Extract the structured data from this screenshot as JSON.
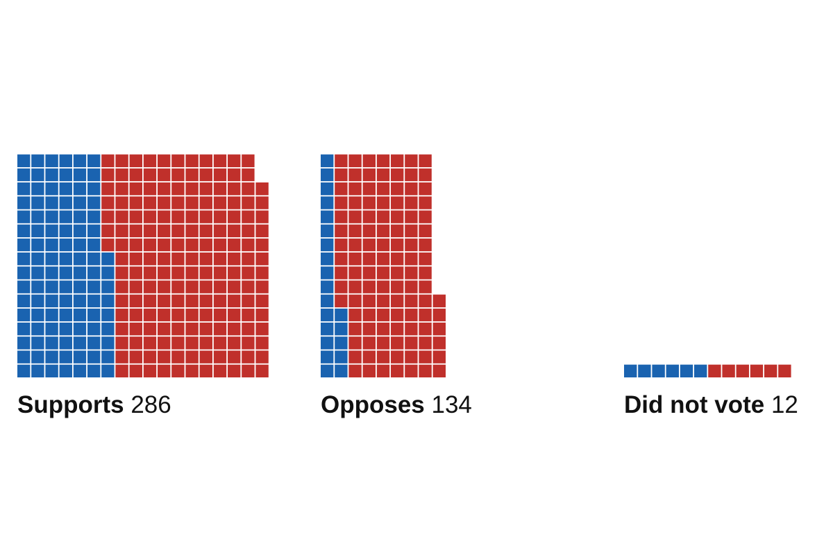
{
  "colors": {
    "blue": "#1a63b0",
    "red": "#c0302b",
    "background": "#ffffff"
  },
  "chart_data": {
    "type": "waffle",
    "series": [
      {
        "name": "Blue",
        "color": "#1a63b0"
      },
      {
        "name": "Red",
        "color": "#c0302b"
      }
    ],
    "groups": [
      {
        "label": "Supports",
        "count": "286",
        "blue": 105,
        "red": 181
      },
      {
        "label": "Opposes",
        "count": "134",
        "blue": 21,
        "red": 113
      },
      {
        "label": "Did not vote",
        "count": "12",
        "blue": 6,
        "red": 6
      }
    ]
  }
}
